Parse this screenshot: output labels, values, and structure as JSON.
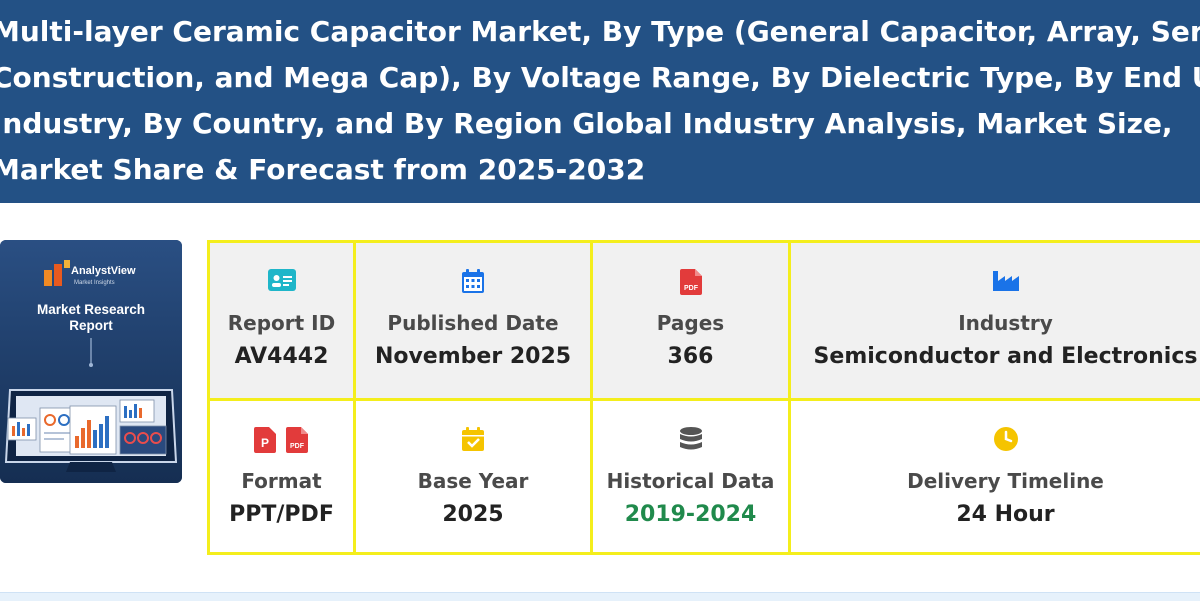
{
  "header": {
    "title": "Multi-layer Ceramic Capacitor Market, By Type (General Capacitor, Array, Serial Construction, and Mega Cap), By Voltage Range, By Dielectric Type, By End Use Industry, By Country, and By Region Global Industry Analysis, Market Size, Market Share & Forecast from 2025-2032"
  },
  "cover": {
    "brand": "AnalystView",
    "brand_sub": "Market Insights",
    "title_line1": "Market Research",
    "title_line2": "Report"
  },
  "details": {
    "report_id": {
      "label": "Report ID",
      "value": "AV4442",
      "icon": "id-card-icon"
    },
    "published_date": {
      "label": "Published Date",
      "value": "November 2025",
      "icon": "calendar-icon"
    },
    "pages": {
      "label": "Pages",
      "value": "366",
      "icon": "pdf-file-icon"
    },
    "industry": {
      "label": "Industry",
      "value": "Semiconductor and Electronics",
      "icon": "industry-icon"
    },
    "format": {
      "label": "Format",
      "value": "PPT/PDF",
      "icon": "file-formats-icon"
    },
    "base_year": {
      "label": "Base Year",
      "value": "2025",
      "icon": "calendar-check-icon"
    },
    "historical_data": {
      "label": "Historical Data",
      "value": "2019-2024",
      "icon": "database-icon"
    },
    "delivery_timeline": {
      "label": "Delivery Timeline",
      "value": "24 Hour",
      "icon": "clock-icon"
    }
  },
  "colors": {
    "header_bg": "#235185",
    "grid_border": "#f4ee1c",
    "accent_green": "#208a4c",
    "icon_teal": "#1fb6c9",
    "icon_blue": "#1a73e8",
    "icon_red": "#e23b3b",
    "icon_yellow": "#f5c400"
  }
}
